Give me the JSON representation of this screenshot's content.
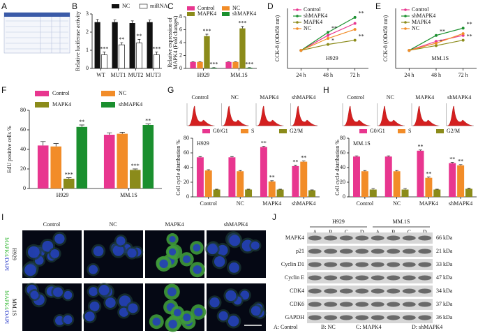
{
  "panel_labels": [
    "A",
    "B",
    "C",
    "D",
    "E",
    "F",
    "G",
    "H",
    "I",
    "J"
  ],
  "chart_data": [
    {
      "type": "bar",
      "ylabel": [
        "Relative luciferase activity"
      ],
      "categories": [
        "WT",
        "MUT1",
        "MUT2",
        "MUT3"
      ],
      "series": [
        {
          "name": "NC",
          "color": "#111111",
          "values": [
            2.55,
            2.55,
            2.5,
            2.55
          ],
          "errors": [
            0.15,
            0.12,
            0.12,
            0.12
          ]
        },
        {
          "name": "miRNA",
          "color": "#ffffff",
          "values": [
            0.75,
            1.3,
            1.4,
            0.75
          ],
          "errors": [
            0.15,
            0.12,
            0.2,
            0.15
          ],
          "significance": [
            "***",
            "**",
            "**",
            "***"
          ]
        }
      ],
      "ylim": [
        0,
        3
      ],
      "yticks": [
        0,
        1,
        2,
        3
      ]
    },
    {
      "type": "bar",
      "ylabel": [
        "Relative expression of",
        "MAPK4 (Fold changes)"
      ],
      "categories": [
        "H929",
        "MM.1S"
      ],
      "series": [
        {
          "name": "Control",
          "color": "#e8368f",
          "values": [
            1,
            1
          ],
          "errors": [
            0.05,
            0.05
          ]
        },
        {
          "name": "NC",
          "color": "#f28c28",
          "values": [
            1,
            1
          ],
          "errors": [
            0.05,
            0.05
          ]
        },
        {
          "name": "MAPK4",
          "color": "#8b8b1a",
          "values": [
            5.0,
            6.2
          ],
          "errors": [
            0.3,
            0.3
          ],
          "significance": [
            "***",
            "***"
          ]
        },
        {
          "name": "shMAPK4",
          "color": "#1a8f2e",
          "values": [
            0.1,
            0.1
          ],
          "errors": [
            0.03,
            0.03
          ],
          "significance": [
            "***",
            "***"
          ]
        }
      ],
      "ylim": [
        0,
        8
      ],
      "yticks": [
        0,
        2,
        4,
        6,
        8
      ]
    },
    {
      "type": "line",
      "ylabel": [
        "CCK-8 (OD450 nm)"
      ],
      "annotation": "H929",
      "categories": [
        "24 h",
        "48 h",
        "72 h"
      ],
      "series": [
        {
          "name": "Control",
          "color": "#e8368f",
          "values": [
            0.3,
            0.55,
            0.75
          ]
        },
        {
          "name": "shMAPK4",
          "color": "#1a8f2e",
          "values": [
            0.3,
            0.6,
            0.85
          ],
          "significance": [
            null,
            "**",
            "**"
          ]
        },
        {
          "name": "MAPK4",
          "color": "#8b8b1a",
          "values": [
            0.3,
            0.4,
            0.47
          ],
          "significance": [
            null,
            "*",
            "**"
          ]
        },
        {
          "name": "NC",
          "color": "#f28c28",
          "values": [
            0.3,
            0.5,
            0.65
          ]
        }
      ],
      "ylim": [
        0,
        1
      ]
    },
    {
      "type": "line",
      "ylabel": [
        "CCK-8 (OD450 nm)"
      ],
      "annotation": "MM.1S",
      "categories": [
        "24 h",
        "48 h",
        "72 h"
      ],
      "series": [
        {
          "name": "Control",
          "color": "#e8368f",
          "values": [
            0.3,
            0.45,
            0.55
          ]
        },
        {
          "name": "shMAPK4",
          "color": "#1a8f2e",
          "values": [
            0.3,
            0.55,
            0.67
          ],
          "significance": [
            null,
            "**",
            "**"
          ]
        },
        {
          "name": "MAPK4",
          "color": "#8b8b1a",
          "values": [
            0.3,
            0.38,
            0.47
          ],
          "significance": [
            null,
            "*",
            "**"
          ]
        },
        {
          "name": "NC",
          "color": "#f28c28",
          "values": [
            0.3,
            0.42,
            0.58
          ]
        }
      ],
      "ylim": [
        0,
        1
      ]
    },
    {
      "type": "bar",
      "ylabel": [
        "EdU positive cells %"
      ],
      "categories": [
        "H929",
        "MM.1S"
      ],
      "series": [
        {
          "name": "Control",
          "color": "#e8368f",
          "values": [
            44,
            55
          ],
          "errors": [
            4,
            2
          ]
        },
        {
          "name": "NC",
          "color": "#f28c28",
          "values": [
            43,
            56
          ],
          "errors": [
            3,
            1.5
          ]
        },
        {
          "name": "MAPK4",
          "color": "#8b8b1a",
          "values": [
            10,
            19
          ],
          "errors": [
            1,
            1
          ],
          "significance": [
            "***",
            "***"
          ]
        },
        {
          "name": "shMAPK4",
          "color": "#1a8f2e",
          "values": [
            63,
            65
          ],
          "errors": [
            2,
            1
          ],
          "significance": [
            "**",
            "**"
          ]
        }
      ],
      "ylim": [
        0,
        80
      ],
      "yticks": [
        0,
        20,
        40,
        60,
        80
      ]
    },
    {
      "type": "bar",
      "ylabel": [
        "Cell cycle distribution %"
      ],
      "annotation": "H929",
      "histogram_labels": [
        "Control",
        "NC",
        "MAPK4",
        "shMAPK4"
      ],
      "categories": [
        "Control",
        "NC",
        "MAPK4",
        "shMAPK4"
      ],
      "series": [
        {
          "name": "G0/G1",
          "color": "#e8368f",
          "values": [
            54,
            54,
            68,
            42
          ],
          "errors": [
            1,
            1,
            1,
            1
          ],
          "significance": [
            null,
            null,
            "**",
            "**"
          ]
        },
        {
          "name": "S",
          "color": "#f28c28",
          "values": [
            36,
            35,
            21,
            48
          ],
          "errors": [
            1,
            1,
            1,
            1
          ],
          "significance": [
            null,
            null,
            "**",
            "**"
          ]
        },
        {
          "name": "G2/M",
          "color": "#8b8b1a",
          "values": [
            10,
            10,
            10,
            9
          ],
          "errors": [
            0.5,
            0.5,
            0.5,
            0.5
          ]
        }
      ],
      "ylim": [
        0,
        80
      ],
      "yticks": [
        0,
        20,
        40,
        60,
        80
      ]
    },
    {
      "type": "bar",
      "ylabel": [
        "Cell cycle distribution %"
      ],
      "annotation": "MM.1S",
      "histogram_labels": [
        "Control",
        "NC",
        "MAPK4",
        "shMAPK4"
      ],
      "categories": [
        "Control",
        "NC",
        "MAPK4",
        "shMAPK4"
      ],
      "series": [
        {
          "name": "G0/G1",
          "color": "#e8368f",
          "values": [
            55,
            55,
            63,
            46
          ],
          "errors": [
            1,
            1,
            1,
            1
          ],
          "significance": [
            null,
            null,
            "**",
            "**"
          ]
        },
        {
          "name": "S",
          "color": "#f28c28",
          "values": [
            35,
            35,
            26,
            43
          ],
          "errors": [
            1,
            1,
            1,
            1
          ],
          "significance": [
            null,
            null,
            "**",
            "**"
          ]
        },
        {
          "name": "G2/M",
          "color": "#8b8b1a",
          "values": [
            10,
            10,
            10,
            11
          ],
          "errors": [
            1.5,
            1.5,
            0.5,
            1
          ]
        }
      ],
      "ylim": [
        0,
        80
      ],
      "yticks": [
        0,
        20,
        40,
        60,
        80
      ]
    }
  ],
  "microscopy": {
    "columns": [
      "Control",
      "NC",
      "MAPK4",
      "shMAPK4"
    ],
    "rows": [
      "H929",
      "MM.1S"
    ],
    "stain_label": [
      "MAPK4",
      "/DAPI"
    ]
  },
  "western_blot": {
    "groups": [
      "H929",
      "MM.1S"
    ],
    "lanes": [
      "A",
      "B",
      "C",
      "D",
      "A",
      "B",
      "C",
      "D"
    ],
    "proteins": [
      {
        "name": "MAPK4",
        "size": "66 kDa"
      },
      {
        "name": "p21",
        "size": "21 kDa"
      },
      {
        "name": "Cyclin D1",
        "size": "33 kDa"
      },
      {
        "name": "Cyclin E",
        "size": "47 kDa"
      },
      {
        "name": "CDK4",
        "size": "34 kDa"
      },
      {
        "name": "CDK6",
        "size": "37 kDa"
      },
      {
        "name": "GAPDH",
        "size": "36 kDa"
      }
    ],
    "key": [
      "A: Control",
      "B: NC",
      "C: MAPK4",
      "D: shMAPK4"
    ]
  }
}
